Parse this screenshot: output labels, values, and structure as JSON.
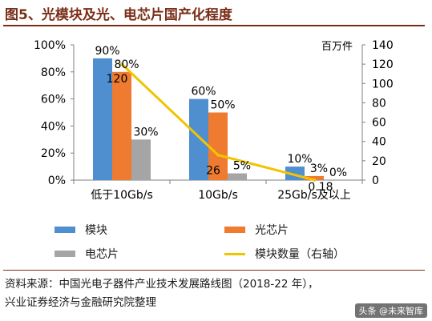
{
  "title": "图5、光模块及光、电芯片国产化程度",
  "right_axis_unit": "百万件",
  "source_line1": "资料来源：中国光电子器件产业技术发展路线图（2018-22 年），",
  "source_line2": "兴业证券经济与金融研究院整理",
  "watermark": "头条 @未来智库",
  "colors": {
    "module": "#4f8fcf",
    "optical_chip": "#ee7b30",
    "electrical_chip": "#a5a5a5",
    "line": "#f2c400",
    "title": "#7a2e17"
  },
  "legend": {
    "module": "模块",
    "optical_chip": "光芯片",
    "electrical_chip": "电芯片",
    "line": "模块数量（右轴）"
  },
  "chart_data": {
    "type": "bar",
    "categories": [
      "低于10Gb/s",
      "10Gb/s",
      "25Gb/s及以上"
    ],
    "series": [
      {
        "name": "模块",
        "axis": "left",
        "values": [
          90,
          60,
          10
        ],
        "labels": [
          "90%",
          "60%",
          "10%"
        ]
      },
      {
        "name": "光芯片",
        "axis": "left",
        "values": [
          80,
          50,
          3
        ],
        "labels": [
          "80%",
          "50%",
          "3%"
        ]
      },
      {
        "name": "电芯片",
        "axis": "left",
        "values": [
          30,
          5,
          0
        ],
        "labels": [
          "30%",
          "5%",
          "0%"
        ]
      }
    ],
    "line_series": {
      "name": "模块数量（右轴）",
      "type": "line",
      "axis": "right",
      "values": [
        120,
        26,
        0.18
      ],
      "labels": [
        "120",
        "26",
        "0.18"
      ]
    },
    "y_left": {
      "ylim": [
        0,
        100
      ],
      "ticks": [
        "0%",
        "20%",
        "40%",
        "60%",
        "80%",
        "100%"
      ]
    },
    "y_right": {
      "ylim": [
        0,
        140
      ],
      "ticks": [
        "0",
        "20",
        "40",
        "60",
        "80",
        "100",
        "120",
        "140"
      ]
    },
    "grid": false,
    "legend_position": "bottom"
  }
}
